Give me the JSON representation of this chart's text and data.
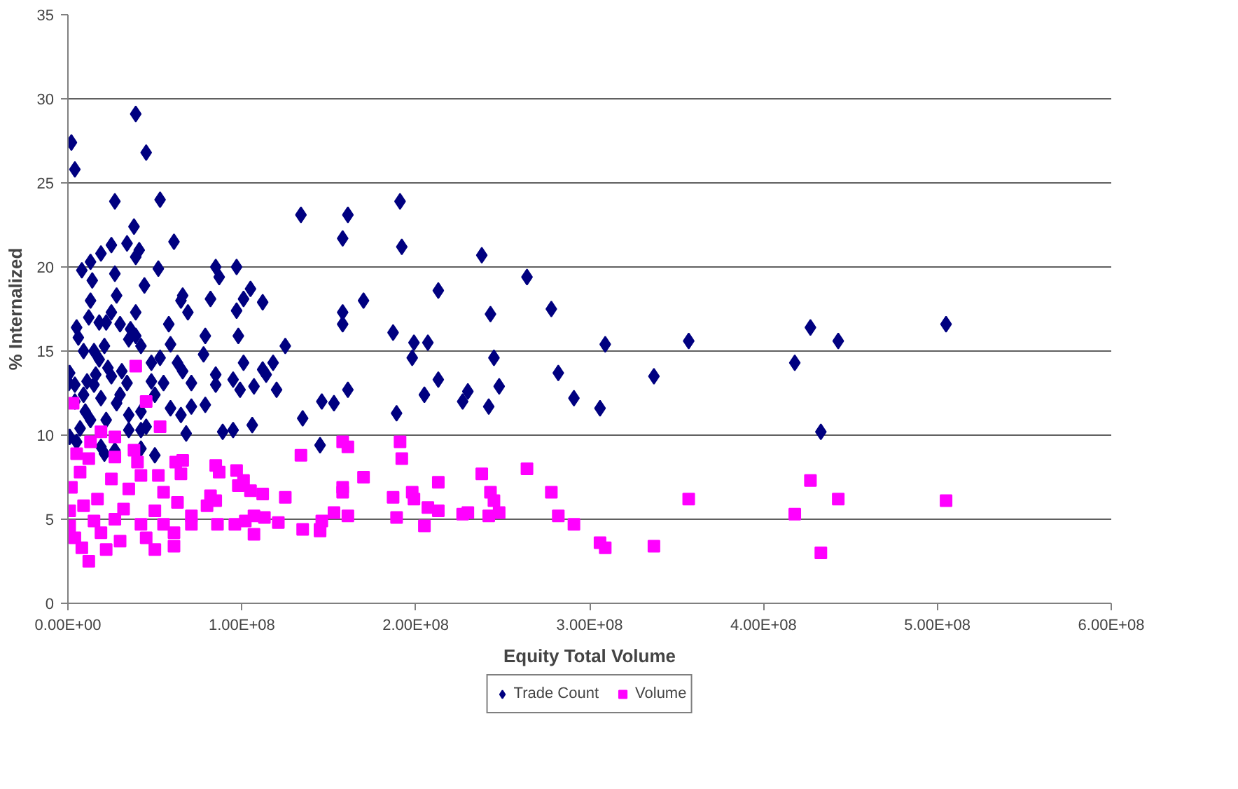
{
  "chart_data": {
    "type": "scatter",
    "xlabel": "Equity Total Volume",
    "ylabel": "% Internalized",
    "xlim": [
      0,
      600000000.0
    ],
    "ylim": [
      0,
      35
    ],
    "xticks": [
      {
        "value": 0,
        "label": "0.00E+00"
      },
      {
        "value": 100000000.0,
        "label": "1.00E+08"
      },
      {
        "value": 200000000.0,
        "label": "2.00E+08"
      },
      {
        "value": 300000000.0,
        "label": "3.00E+08"
      },
      {
        "value": 400000000.0,
        "label": "4.00E+08"
      },
      {
        "value": 500000000.0,
        "label": "5.00E+08"
      },
      {
        "value": 600000000.0,
        "label": "6.00E+08"
      }
    ],
    "yticks": [
      0,
      5,
      10,
      15,
      20,
      25,
      30,
      35
    ],
    "grid": "y",
    "legend": "bottom",
    "series": [
      {
        "name": "Trade Count",
        "color": "#000080",
        "marker": "diamond",
        "x": [
          161000000.0,
          158000000.0,
          191000000.0,
          192000000.0,
          238000000.0,
          264000000.0,
          213000000.0,
          170000000.0,
          158000000.0,
          158000000.0,
          243000000.0,
          278000000.0,
          187000000.0,
          199000000.0,
          207000000.0,
          309000000.0,
          357000000.0,
          198000000.0,
          245000000.0,
          282000000.0,
          337000000.0,
          213000000.0,
          161000000.0,
          248000000.0,
          205000000.0,
          230000000.0,
          227000000.0,
          146000000.0,
          153000000.0,
          291000000.0,
          306000000.0,
          242000000.0,
          189000000.0,
          145000000.0,
          427000000.0,
          443000000.0,
          505000000.0,
          418000000.0,
          433000000.0,
          134000000.0,
          97000000.0,
          85000000.0,
          87000000.0,
          105000000.0,
          101000000.0,
          112000000.0,
          97000000.0,
          82000000.0,
          79000000.0,
          98000000.0,
          125000000.0,
          78000000.0,
          101000000.0,
          118000000.0,
          112000000.0,
          114000000.0,
          85000000.0,
          95000000.0,
          99000000.0,
          107000000.0,
          85000000.0,
          120000000.0,
          135000000.0,
          106000000.0,
          95000000.0,
          89000000.0,
          79000000.0,
          71000000.0,
          68000000.0,
          50000000.0,
          39000000.0,
          2000000.0,
          4000000.0,
          45000000.0,
          27000000.0,
          53000000.0,
          38000000.0,
          61000000.0,
          25000000.0,
          34000000.0,
          41000000.0,
          39000000.0,
          19000000.0,
          13000000.0,
          8000000.0,
          27000000.0,
          52000000.0,
          14000000.0,
          44000000.0,
          28000000.0,
          13000000.0,
          66000000.0,
          65000000.0,
          25000000.0,
          69000000.0,
          39000000.0,
          12000000.0,
          18000000.0,
          22000000.0,
          58000000.0,
          30000000.0,
          5000000.0,
          6000000.0,
          36000000.0,
          39000000.0,
          35000000.0,
          21000000.0,
          9000000.0,
          15000000.0,
          42000000.0,
          59000000.0,
          53000000.0,
          63000000.0,
          66000000.0,
          1000000.0,
          500000.0,
          48000000.0,
          31000000.0,
          23000000.0,
          48000000.0,
          55000000.0,
          34000000.0,
          16000000.0,
          71000000.0,
          50000000.0,
          59000000.0,
          65000000.0,
          42000000.0,
          28000000.0,
          35000000.0,
          45000000.0,
          42000000.0,
          35000000.0,
          10000000.0,
          9000000.0,
          15000000.0,
          19000000.0,
          22000000.0,
          7000000.0,
          1000000.0,
          19000000.0,
          21000000.0,
          27000000.0,
          42000000.0,
          5000000.0,
          13000000.0,
          11000000.0,
          25000000.0,
          18000000.0,
          4000000.0,
          4000000.0,
          30000000.0
        ],
        "values": [
          23.1,
          21.7,
          23.9,
          21.2,
          20.7,
          19.4,
          18.6,
          18.0,
          17.3,
          16.6,
          17.2,
          17.5,
          16.1,
          15.5,
          15.5,
          15.4,
          15.6,
          14.6,
          14.6,
          13.7,
          13.5,
          13.3,
          12.7,
          12.9,
          12.4,
          12.6,
          12.0,
          12.0,
          11.9,
          12.2,
          11.6,
          11.7,
          11.3,
          9.4,
          16.4,
          15.6,
          16.6,
          14.3,
          10.2,
          23.1,
          20.0,
          20.0,
          19.4,
          18.7,
          18.1,
          17.9,
          17.4,
          18.1,
          15.9,
          15.9,
          15.3,
          14.8,
          14.3,
          14.3,
          13.9,
          13.6,
          13.6,
          13.3,
          12.7,
          12.9,
          13.0,
          12.7,
          11.0,
          10.6,
          10.3,
          10.2,
          11.8,
          11.7,
          10.1,
          8.8,
          29.1,
          27.4,
          25.8,
          26.8,
          23.9,
          24.0,
          22.4,
          21.5,
          21.3,
          21.4,
          21.0,
          20.6,
          20.8,
          20.3,
          19.8,
          19.6,
          19.9,
          19.2,
          18.9,
          18.3,
          18.0,
          18.3,
          18.0,
          17.3,
          17.3,
          17.3,
          17.0,
          16.7,
          16.7,
          16.6,
          16.6,
          16.4,
          15.8,
          16.3,
          15.9,
          15.7,
          15.3,
          15.0,
          15.0,
          15.3,
          15.4,
          14.6,
          14.3,
          13.8,
          13.7,
          13.1,
          14.3,
          13.8,
          14.0,
          13.2,
          13.1,
          13.1,
          13.6,
          13.1,
          12.4,
          11.6,
          11.2,
          11.4,
          11.9,
          11.2,
          10.5,
          10.3,
          10.3,
          11.4,
          12.4,
          13.0,
          12.2,
          10.9,
          10.4,
          9.9,
          9.3,
          8.9,
          9.1,
          9.2,
          9.6,
          10.9,
          13.2,
          13.5,
          14.5,
          13.0,
          12.0,
          12.4
        ]
      },
      {
        "name": "Volume",
        "color": "#ff00ff",
        "marker": "square",
        "x": [
          158000000.0,
          161000000.0,
          191000000.0,
          192000000.0,
          170000000.0,
          238000000.0,
          264000000.0,
          213000000.0,
          158000000.0,
          158000000.0,
          187000000.0,
          198000000.0,
          199000000.0,
          243000000.0,
          245000000.0,
          278000000.0,
          357000000.0,
          207000000.0,
          213000000.0,
          153000000.0,
          161000000.0,
          146000000.0,
          145000000.0,
          189000000.0,
          227000000.0,
          230000000.0,
          242000000.0,
          248000000.0,
          205000000.0,
          282000000.0,
          291000000.0,
          306000000.0,
          309000000.0,
          337000000.0,
          427000000.0,
          443000000.0,
          505000000.0,
          418000000.0,
          433000000.0,
          3000000.0,
          39000000.0,
          45000000.0,
          53000000.0,
          19000000.0,
          27000000.0,
          13000000.0,
          5000000.0,
          38000000.0,
          27000000.0,
          40000000.0,
          12000000.0,
          62000000.0,
          66000000.0,
          134000000.0,
          85000000.0,
          87000000.0,
          97000000.0,
          101000000.0,
          105000000.0,
          112000000.0,
          125000000.0,
          98000000.0,
          82000000.0,
          85000000.0,
          80000000.0,
          52000000.0,
          65000000.0,
          7000000.0,
          2000000.0,
          25000000.0,
          42000000.0,
          35000000.0,
          17000000.0,
          55000000.0,
          63000000.0,
          50000000.0,
          32000000.0,
          9000000.0,
          1000000.0,
          1000000.0,
          15000000.0,
          27000000.0,
          42000000.0,
          55000000.0,
          71000000.0,
          86000000.0,
          96000000.0,
          107000000.0,
          113000000.0,
          121000000.0,
          102000000.0,
          107000000.0,
          71000000.0,
          61000000.0,
          50000000.0,
          61000000.0,
          22000000.0,
          8000000.0,
          12000000.0,
          30000000.0,
          45000000.0,
          19000000.0,
          4000000.0,
          135000000.0,
          145000000.0
        ],
        "values": [
          9.6,
          9.3,
          9.6,
          8.6,
          7.5,
          7.7,
          8.0,
          7.2,
          6.9,
          6.6,
          6.3,
          6.6,
          6.2,
          6.6,
          6.1,
          6.6,
          6.2,
          5.7,
          5.5,
          5.4,
          5.2,
          4.9,
          4.3,
          5.1,
          5.3,
          5.4,
          5.2,
          5.4,
          4.6,
          5.2,
          4.7,
          3.6,
          3.3,
          3.4,
          7.3,
          6.2,
          6.1,
          5.3,
          3.0,
          11.9,
          14.1,
          12.0,
          10.5,
          10.2,
          9.9,
          9.6,
          8.9,
          9.1,
          8.7,
          8.4,
          8.6,
          8.4,
          8.5,
          8.8,
          8.2,
          7.8,
          7.9,
          7.3,
          6.7,
          6.5,
          6.3,
          7.0,
          6.4,
          6.1,
          5.8,
          7.6,
          7.7,
          7.8,
          6.9,
          7.4,
          7.6,
          6.8,
          6.2,
          6.6,
          6.0,
          5.5,
          5.6,
          5.8,
          5.5,
          4.6,
          4.9,
          5.0,
          4.7,
          4.7,
          4.7,
          4.7,
          4.7,
          5.2,
          5.1,
          4.8,
          4.9,
          4.1,
          5.2,
          4.2,
          3.2,
          3.4,
          3.2,
          3.3,
          2.5,
          3.7,
          3.9,
          4.2,
          3.9,
          4.4,
          4.4
        ]
      }
    ]
  }
}
